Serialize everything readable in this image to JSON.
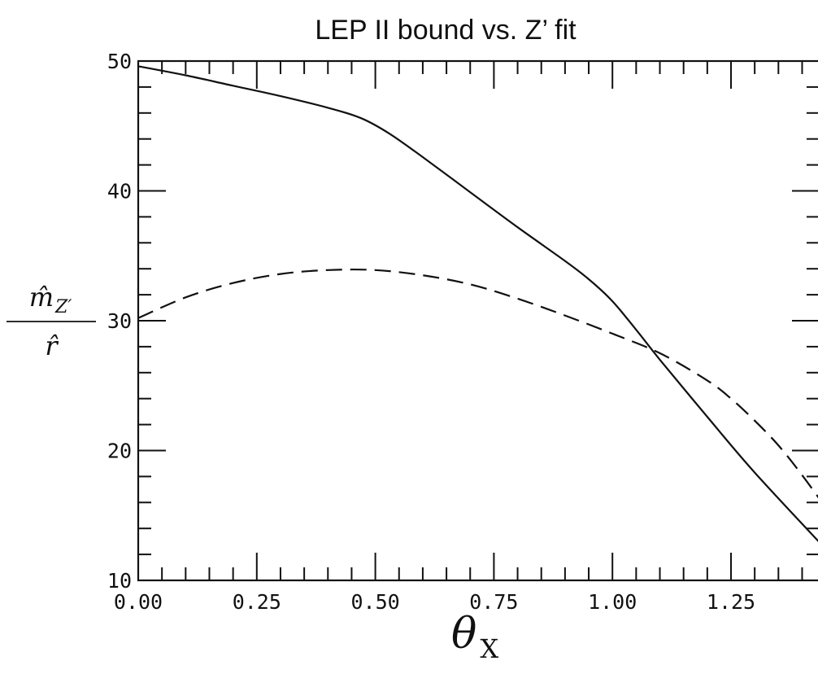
{
  "chart_data": {
    "type": "line",
    "title": "LEP II bound vs. Z’ fit",
    "xlabel": "θ",
    "xlabel_sub": "X",
    "ylabel_numerator": "m̂",
    "ylabel_numerator_sub": "Z′",
    "ylabel_denominator": "r̂",
    "xlim": [
      0.0,
      1.45
    ],
    "ylim": [
      10,
      50
    ],
    "x_ticks": [
      "0.00",
      "0.25",
      "0.50",
      "0.75",
      "1.00",
      "1.25"
    ],
    "y_ticks": [
      "10",
      "20",
      "30",
      "40",
      "50"
    ],
    "grid": false,
    "series": [
      {
        "style": "solid",
        "x": [
          0.0,
          0.1,
          0.2,
          0.3,
          0.4,
          0.47,
          0.53,
          0.6,
          0.7,
          0.8,
          0.9,
          0.95,
          1.0,
          1.05,
          1.1,
          1.2,
          1.3,
          1.45
        ],
        "y": [
          49.6,
          48.9,
          48.1,
          47.3,
          46.4,
          45.6,
          44.4,
          42.6,
          39.9,
          37.2,
          34.6,
          33.2,
          31.5,
          29.3,
          27.0,
          22.6,
          18.3,
          12.4
        ]
      },
      {
        "style": "dashed",
        "x": [
          0.0,
          0.1,
          0.2,
          0.3,
          0.4,
          0.5,
          0.6,
          0.7,
          0.8,
          0.9,
          1.0,
          1.1,
          1.2,
          1.25,
          1.3,
          1.35,
          1.4,
          1.45
        ],
        "y": [
          30.2,
          31.8,
          32.9,
          33.6,
          33.9,
          33.9,
          33.5,
          32.8,
          31.7,
          30.4,
          29.0,
          27.5,
          25.4,
          24.0,
          22.3,
          20.4,
          18.1,
          15.6
        ]
      }
    ]
  }
}
